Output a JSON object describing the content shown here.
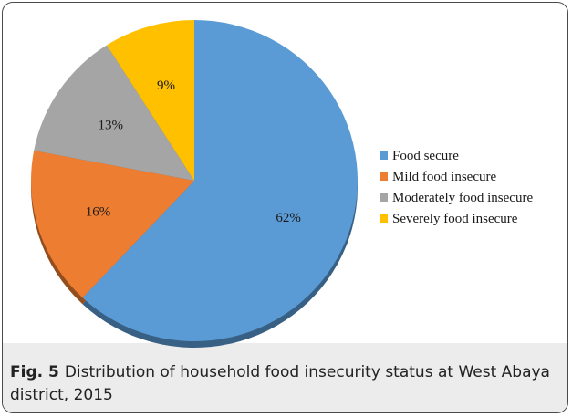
{
  "chart_data": {
    "type": "pie",
    "categories": [
      "Food secure",
      "Mild food insecure",
      "Moderately food insecure",
      "Severely food insecure"
    ],
    "values": [
      62,
      16,
      13,
      9
    ],
    "data_labels": [
      "62%",
      "16%",
      "13%",
      "9%"
    ],
    "colors": [
      "#5b9bd5",
      "#ed7d31",
      "#a5a5a5",
      "#ffc000"
    ],
    "legend_position": "right",
    "style": "3d-tilted"
  },
  "caption": {
    "label": "Fig. 5",
    "text": "Distribution of household food insecurity status at West Abaya district, 2015"
  }
}
